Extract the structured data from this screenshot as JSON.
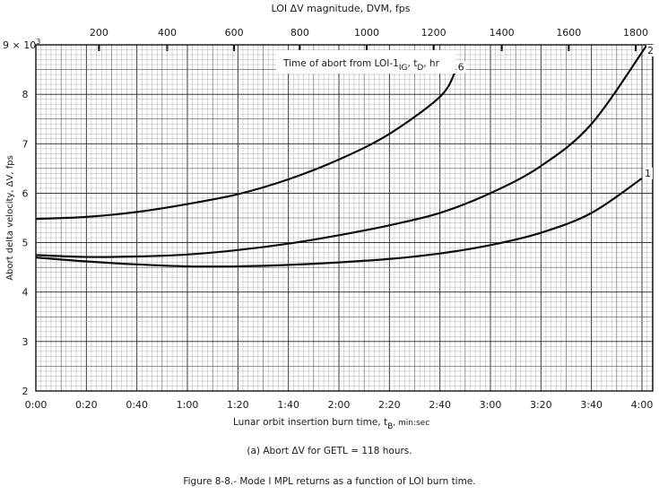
{
  "chart_data": {
    "type": "line",
    "title": "",
    "xlabel": "Lunar orbit insertion burn time, t",
    "xlabel_sub": "B",
    "xlabel_suffix": ", min:sec",
    "ylabel": "Abort delta velocity, ΔV, fps",
    "top_axis_label": "LOI ΔV magnitude, DVM, fps",
    "y_multiplier_label": "9 × 10",
    "y_multiplier_exp": "3",
    "xlim_seconds": [
      0,
      245
    ],
    "ylim": [
      2,
      9
    ],
    "x_ticks": [
      {
        "label": "0:00",
        "seconds": 0
      },
      {
        "label": "0:20",
        "seconds": 20
      },
      {
        "label": "0:40",
        "seconds": 40
      },
      {
        "label": "1:00",
        "seconds": 60
      },
      {
        "label": "1:20",
        "seconds": 80
      },
      {
        "label": "1:40",
        "seconds": 100
      },
      {
        "label": "2:00",
        "seconds": 120
      },
      {
        "label": "2:20",
        "seconds": 140
      },
      {
        "label": "2:40",
        "seconds": 160
      },
      {
        "label": "3:00",
        "seconds": 180
      },
      {
        "label": "3:20",
        "seconds": 200
      },
      {
        "label": "3:40",
        "seconds": 220
      },
      {
        "label": "4:00",
        "seconds": 240
      }
    ],
    "y_ticks": [
      "8",
      "7",
      "6",
      "5",
      "4",
      "3",
      "2"
    ],
    "top_ticks": [
      {
        "label": "200",
        "seconds": 25
      },
      {
        "label": "400",
        "seconds": 52
      },
      {
        "label": "600",
        "seconds": 78.5
      },
      {
        "label": "800",
        "seconds": 104.5
      },
      {
        "label": "1000",
        "seconds": 131
      },
      {
        "label": "1200",
        "seconds": 157.5
      },
      {
        "label": "1400",
        "seconds": 184.5
      },
      {
        "label": "1600",
        "seconds": 211
      },
      {
        "label": "1800",
        "seconds": 237.5
      }
    ],
    "legend_title": "Time of abort from LOI-1",
    "legend_sub1": "IG",
    "legend_mid": ", t",
    "legend_sub2": "D",
    "legend_end": ", hr",
    "grid": true,
    "series": [
      {
        "name": "6",
        "x_seconds": [
          0,
          20,
          40,
          60,
          80,
          100,
          120,
          140,
          160,
          166
        ],
        "values": [
          5.48,
          5.52,
          5.62,
          5.78,
          5.98,
          6.28,
          6.68,
          7.2,
          7.95,
          8.45
        ]
      },
      {
        "name": "2",
        "x_seconds": [
          0,
          20,
          40,
          60,
          80,
          100,
          120,
          140,
          160,
          180,
          200,
          220,
          242
        ],
        "values": [
          4.75,
          4.71,
          4.72,
          4.76,
          4.85,
          4.98,
          5.15,
          5.35,
          5.6,
          6.0,
          6.55,
          7.4,
          9.0
        ]
      },
      {
        "name": "1",
        "x_seconds": [
          0,
          20,
          40,
          60,
          80,
          100,
          120,
          140,
          160,
          180,
          200,
          220,
          240
        ],
        "values": [
          4.7,
          4.62,
          4.56,
          4.52,
          4.52,
          4.55,
          4.6,
          4.67,
          4.78,
          4.95,
          5.2,
          5.6,
          6.3
        ]
      }
    ]
  },
  "captions": {
    "subfigure": "(a) Abort ΔV for GETL = 118 hours.",
    "figure": "Figure 8-8.- Mode I MPL returns as a function of LOI burn time."
  }
}
